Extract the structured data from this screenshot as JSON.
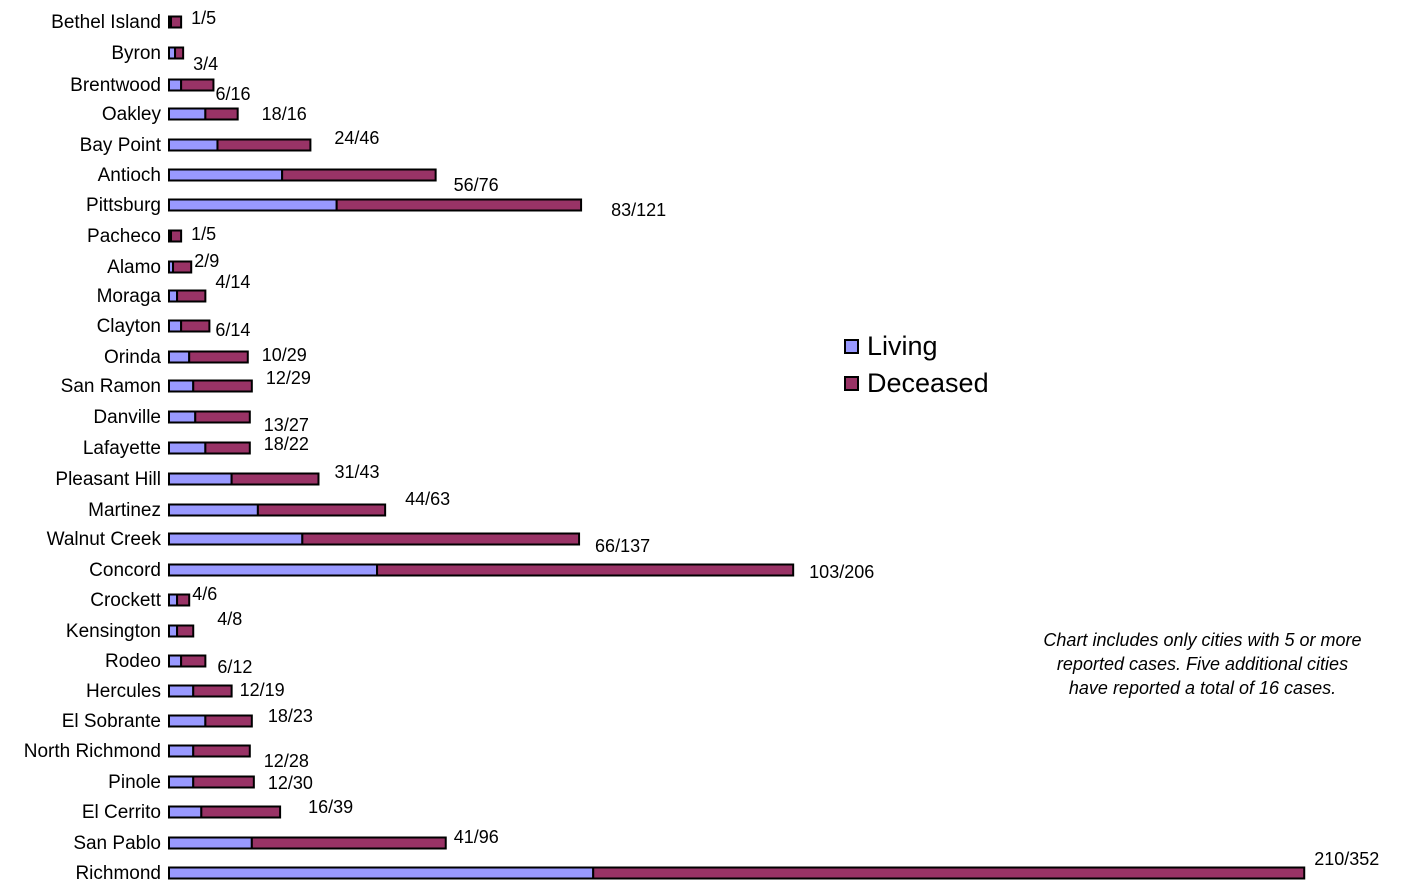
{
  "chart_data": {
    "type": "bar",
    "orientation": "horizontal",
    "stacked": true,
    "categories": [
      "Bethel Island",
      "Byron",
      "Brentwood",
      "Oakley",
      "Bay Point",
      "Antioch",
      "Pittsburg",
      "Pacheco",
      "Alamo",
      "Moraga",
      "Clayton",
      "Orinda",
      "San Ramon",
      "Danville",
      "Lafayette",
      "Pleasant Hill",
      "Martinez",
      "Walnut Creek",
      "Concord",
      "Crockett",
      "Kensington",
      "Rodeo",
      "Hercules",
      "El Sobrante",
      "North Richmond",
      "Pinole",
      "El Cerrito",
      "San Pablo",
      "Richmond"
    ],
    "series": [
      {
        "name": "Living",
        "color": "#9999ff",
        "values": [
          1,
          3,
          6,
          18,
          24,
          56,
          83,
          1,
          2,
          4,
          6,
          10,
          12,
          13,
          18,
          31,
          44,
          66,
          103,
          4,
          4,
          6,
          12,
          18,
          12,
          12,
          16,
          41,
          210
        ]
      },
      {
        "name": "Deceased",
        "color": "#993366",
        "values": [
          5,
          4,
          16,
          16,
          46,
          76,
          121,
          5,
          9,
          14,
          14,
          29,
          29,
          27,
          22,
          43,
          63,
          137,
          206,
          6,
          8,
          12,
          19,
          23,
          28,
          30,
          39,
          96,
          352
        ]
      }
    ],
    "value_labels": [
      "1/5",
      "3/4",
      "6/16",
      "18/16",
      "24/46",
      "56/76",
      "83/121",
      "1/5",
      "2/9",
      "4/14",
      "6/14",
      "10/29",
      "12/29",
      "13/27",
      "18/22",
      "31/43",
      "44/63",
      "66/137",
      "103/206",
      "4/6",
      "4/8",
      "6/12",
      "12/19",
      "18/23",
      "12/28",
      "12/30",
      "16/39",
      "41/96",
      "210/352"
    ],
    "legend_position": "right",
    "grid": false,
    "annotation": "Chart includes only cities with 5 or more reported cases.  Five additional cities have reported a total of 16 cases."
  }
}
